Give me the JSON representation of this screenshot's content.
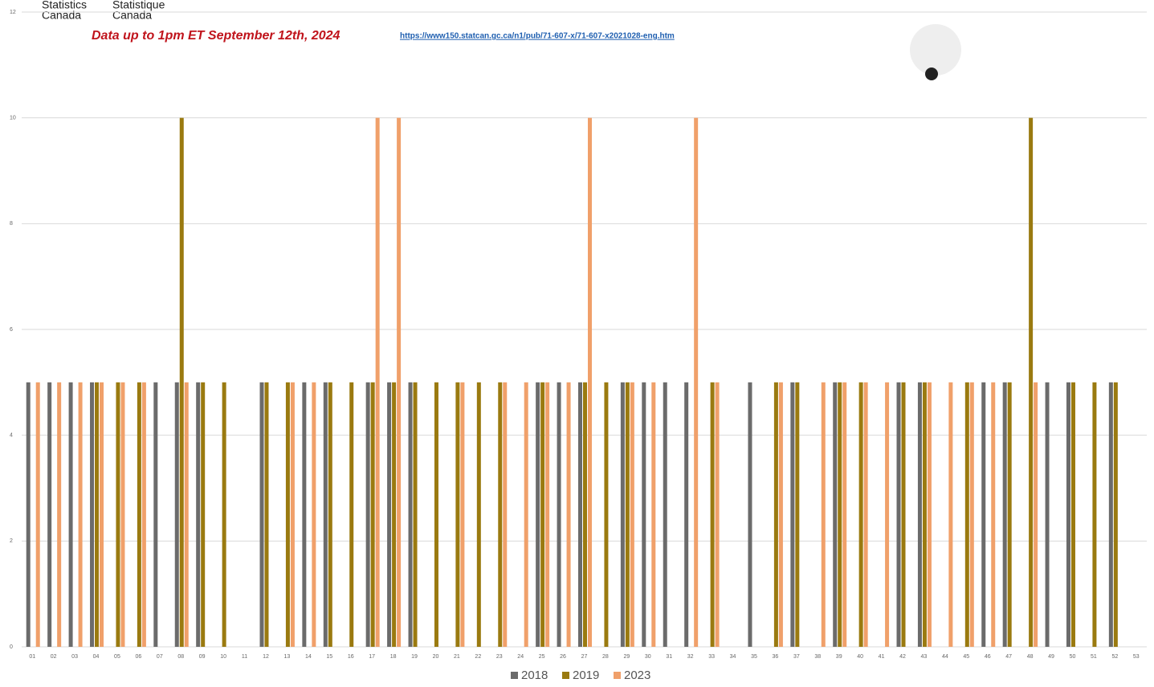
{
  "chart_data": {
    "type": "bar",
    "logo_en": [
      "Statistics",
      "Canada"
    ],
    "logo_fr": [
      "Statistique",
      "Canada"
    ],
    "note": "Data up to 1pm ET September 12th, 2024",
    "link": "https://www150.statcan.gc.ca/n1/pub/71-607-x/71-607-x2021028-eng.htm",
    "categories": [
      "01",
      "02",
      "03",
      "04",
      "05",
      "06",
      "07",
      "08",
      "09",
      "10",
      "11",
      "12",
      "13",
      "14",
      "15",
      "16",
      "17",
      "18",
      "19",
      "20",
      "21",
      "22",
      "23",
      "24",
      "25",
      "26",
      "27",
      "28",
      "29",
      "30",
      "31",
      "32",
      "33",
      "34",
      "35",
      "36",
      "37",
      "38",
      "39",
      "40",
      "41",
      "42",
      "43",
      "44",
      "45",
      "46",
      "47",
      "48",
      "49",
      "50",
      "51",
      "52",
      "53"
    ],
    "series": [
      {
        "name": "2018",
        "color": "#6b6b6b",
        "values": [
          5,
          5,
          5,
          5,
          0,
          0,
          5,
          5,
          5,
          0,
          0,
          5,
          0,
          5,
          5,
          0,
          5,
          5,
          5,
          0,
          0,
          0,
          0,
          0,
          5,
          5,
          5,
          0,
          5,
          5,
          5,
          5,
          0,
          0,
          5,
          0,
          5,
          0,
          5,
          0,
          0,
          5,
          5,
          0,
          0,
          5,
          5,
          0,
          5,
          5,
          0,
          5,
          0
        ]
      },
      {
        "name": "2019",
        "color": "#9a7a10",
        "values": [
          0,
          0,
          0,
          5,
          5,
          5,
          0,
          10,
          5,
          5,
          0,
          5,
          5,
          0,
          5,
          5,
          5,
          5,
          5,
          5,
          5,
          5,
          5,
          0,
          5,
          0,
          5,
          5,
          5,
          0,
          0,
          0,
          5,
          0,
          0,
          5,
          5,
          0,
          5,
          5,
          0,
          5,
          5,
          0,
          5,
          0,
          5,
          10,
          0,
          5,
          5,
          5,
          0
        ]
      },
      {
        "name": "2023",
        "color": "#f0a06a",
        "values": [
          5,
          5,
          5,
          5,
          5,
          5,
          0,
          5,
          0,
          0,
          0,
          0,
          5,
          5,
          0,
          0,
          10,
          10,
          0,
          0,
          5,
          0,
          5,
          5,
          5,
          5,
          10,
          0,
          5,
          5,
          0,
          10,
          5,
          0,
          0,
          5,
          0,
          5,
          5,
          5,
          5,
          0,
          5,
          5,
          5,
          5,
          0,
          5,
          0,
          0,
          0,
          0,
          0
        ]
      }
    ],
    "ylim": [
      0,
      12
    ],
    "yticks": [
      0,
      2,
      4,
      6,
      8,
      10,
      12
    ],
    "grid": true
  }
}
